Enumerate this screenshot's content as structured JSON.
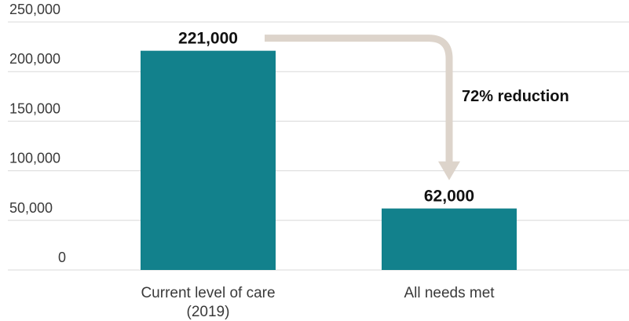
{
  "chart_data": {
    "type": "bar",
    "categories": [
      "Current level of care\n(2019)",
      "All needs met"
    ],
    "values": [
      221000,
      62000
    ],
    "data_labels": [
      "221,000",
      "62,000"
    ],
    "ylim": [
      0,
      250000
    ],
    "yticks": [
      0,
      50000,
      100000,
      150000,
      200000,
      250000
    ],
    "ytick_labels": [
      "0",
      "50,000",
      "100,000",
      "150,000",
      "200,000",
      "250,000"
    ],
    "title": "",
    "xlabel": "",
    "ylabel": "",
    "grid": true,
    "annotation": {
      "text": "72% reduction",
      "from_category": 0,
      "to_category": 1
    },
    "colors": {
      "bar": "#12818c",
      "arrow": "#ddd4cb",
      "grid": "#d9d9d9",
      "text": "#3a3a3a"
    }
  }
}
